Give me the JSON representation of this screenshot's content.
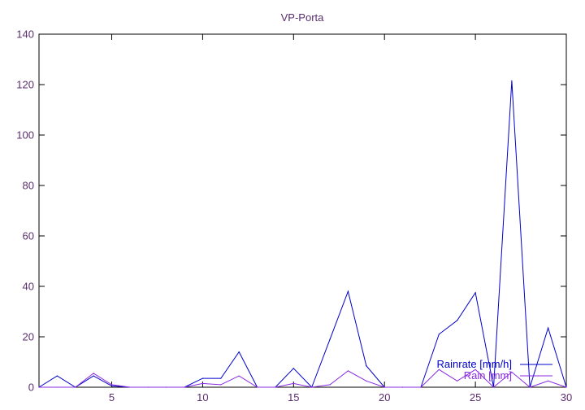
{
  "chart_data": {
    "type": "line",
    "title": "VP-Porta",
    "xlabel": "",
    "ylabel": "",
    "xlim": [
      1,
      30
    ],
    "ylim": [
      0,
      140
    ],
    "xticks": [
      5,
      10,
      15,
      20,
      25,
      30
    ],
    "yticks": [
      0,
      20,
      40,
      60,
      80,
      100,
      120,
      140
    ],
    "legend_position": "bottom-right",
    "grid": false,
    "x": [
      1,
      2,
      3,
      4,
      5,
      6,
      7,
      8,
      9,
      10,
      11,
      12,
      13,
      14,
      15,
      16,
      17,
      18,
      19,
      20,
      21,
      22,
      23,
      24,
      25,
      26,
      27,
      28,
      29,
      30
    ],
    "series": [
      {
        "name": "Rainrate [mm/h]",
        "color": "#0000cc",
        "values": [
          0,
          4.5,
          0,
          4.5,
          0.5,
          0,
          0,
          0,
          0,
          3.5,
          3.5,
          14,
          0,
          0,
          7.5,
          0,
          19,
          38,
          8.5,
          0,
          0,
          0,
          21,
          26.5,
          37.5,
          0,
          121.5,
          0,
          23.5,
          0
        ]
      },
      {
        "name": "Rain [mm]",
        "color": "#8a2be2",
        "values": [
          0,
          0,
          0,
          5.5,
          1,
          0,
          0,
          0,
          0,
          1.5,
          1,
          4.5,
          0,
          0,
          1.5,
          0,
          1,
          6.5,
          2.5,
          0,
          0,
          0,
          7,
          2.5,
          7,
          0,
          6,
          0,
          2.5,
          0
        ]
      }
    ]
  }
}
